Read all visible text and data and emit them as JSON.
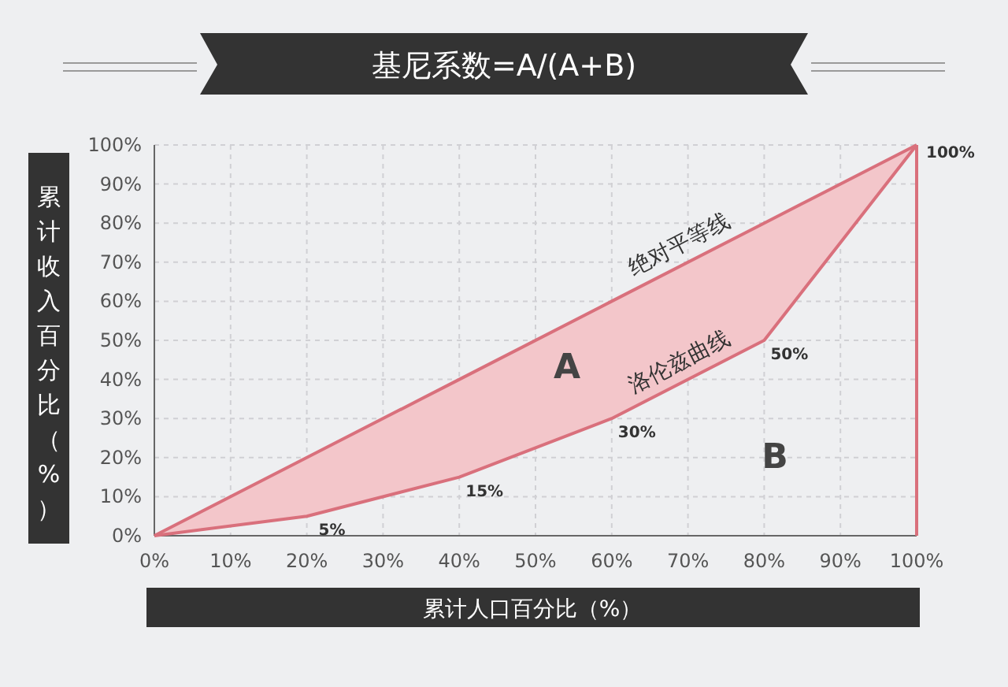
{
  "chart_data": {
    "type": "line",
    "title": "基尼系数=A/(A+B)",
    "xlabel": "累计人口百分比（%）",
    "ylabel": "累计收入百分比（%）",
    "xlim": [
      0,
      100
    ],
    "ylim": [
      0,
      100
    ],
    "xticks": [
      {
        "value": 0,
        "label": "0%"
      },
      {
        "value": 10,
        "label": "10%"
      },
      {
        "value": 20,
        "label": "20%"
      },
      {
        "value": 30,
        "label": "30%"
      },
      {
        "value": 40,
        "label": "40%"
      },
      {
        "value": 50,
        "label": "50%"
      },
      {
        "value": 60,
        "label": "60%"
      },
      {
        "value": 70,
        "label": "70%"
      },
      {
        "value": 80,
        "label": "80%"
      },
      {
        "value": 90,
        "label": "90%"
      },
      {
        "value": 100,
        "label": "100%"
      }
    ],
    "yticks": [
      {
        "value": 0,
        "label": "0%"
      },
      {
        "value": 10,
        "label": "10%"
      },
      {
        "value": 20,
        "label": "20%"
      },
      {
        "value": 30,
        "label": "30%"
      },
      {
        "value": 40,
        "label": "40%"
      },
      {
        "value": 50,
        "label": "50%"
      },
      {
        "value": 60,
        "label": "60%"
      },
      {
        "value": 70,
        "label": "70%"
      },
      {
        "value": 80,
        "label": "80%"
      },
      {
        "value": 90,
        "label": "90%"
      },
      {
        "value": 100,
        "label": "100%"
      }
    ],
    "series": [
      {
        "name": "绝对平等线",
        "color": "#d9707c",
        "x": [
          0,
          20,
          40,
          60,
          80,
          100
        ],
        "values": [
          0,
          20,
          40,
          60,
          80,
          100
        ],
        "lower": [
          0,
          5,
          15,
          30,
          50,
          100
        ],
        "upper": [
          0,
          20,
          40,
          60,
          80,
          100
        ]
      },
      {
        "name": "洛伦兹曲线",
        "color": "#d9707c",
        "x": [
          0,
          20,
          40,
          60,
          80,
          100
        ],
        "values": [
          0,
          5,
          15,
          30,
          50,
          100
        ],
        "value_labels": [
          null,
          "5%",
          "15%",
          "30%",
          "50%",
          "100%"
        ]
      }
    ],
    "ref_lines": [
      {
        "axis": "x",
        "value": 100,
        "color": "#d9707c"
      }
    ],
    "annotations": [
      "A",
      "B"
    ],
    "grid": true,
    "marker": "none",
    "line_style": "solid"
  }
}
